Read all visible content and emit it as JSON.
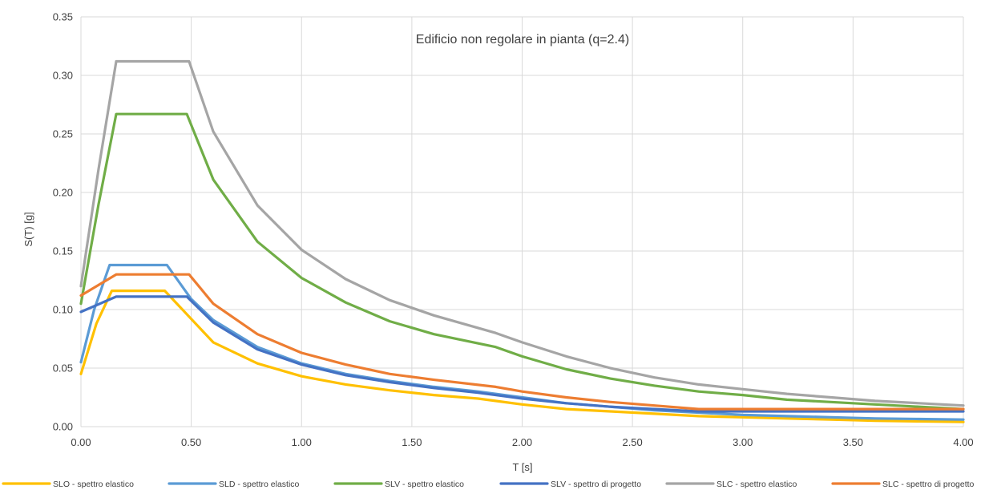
{
  "chart_data": {
    "type": "line",
    "title": "Edificio non regolare in pianta (q=2.4)",
    "xlabel": "T [s]",
    "ylabel": "S(T) [g]",
    "xlim": [
      0,
      4
    ],
    "ylim": [
      0,
      0.35
    ],
    "xticks": [
      "0.00",
      "0.50",
      "1.00",
      "1.50",
      "2.00",
      "2.50",
      "3.00",
      "3.50",
      "4.00"
    ],
    "yticks": [
      "0.00",
      "0.05",
      "0.10",
      "0.15",
      "0.20",
      "0.25",
      "0.30",
      "0.35"
    ],
    "grid": true,
    "legend_position": "bottom",
    "series": [
      {
        "name": "SLO - spettro elastico",
        "color": "#ffc000",
        "x": [
          0,
          0.07,
          0.14,
          0.38,
          0.5,
          0.6,
          0.8,
          1.0,
          1.2,
          1.4,
          1.6,
          1.8,
          2.0,
          2.2,
          2.4,
          2.6,
          2.8,
          3.0,
          3.2,
          3.4,
          3.6,
          3.8,
          4.0
        ],
        "y": [
          0.045,
          0.088,
          0.116,
          0.116,
          0.092,
          0.072,
          0.054,
          0.043,
          0.036,
          0.031,
          0.027,
          0.024,
          0.019,
          0.015,
          0.013,
          0.011,
          0.009,
          0.008,
          0.007,
          0.006,
          0.005,
          0.0045,
          0.004
        ]
      },
      {
        "name": "SLD - spettro elastico",
        "color": "#5b9bd5",
        "x": [
          0,
          0.06,
          0.13,
          0.39,
          0.5,
          0.6,
          0.8,
          1.0,
          1.2,
          1.4,
          1.6,
          1.8,
          2.0,
          2.2,
          2.4,
          2.6,
          2.8,
          3.0,
          3.2,
          3.4,
          3.6,
          3.8,
          4.0
        ],
        "y": [
          0.055,
          0.1,
          0.138,
          0.138,
          0.109,
          0.091,
          0.068,
          0.054,
          0.045,
          0.039,
          0.034,
          0.03,
          0.025,
          0.02,
          0.017,
          0.014,
          0.012,
          0.01,
          0.009,
          0.008,
          0.007,
          0.0065,
          0.006
        ]
      },
      {
        "name": "SLV - spettro elastico",
        "color": "#70ad47",
        "x": [
          0,
          0.08,
          0.16,
          0.48,
          0.6,
          0.8,
          1.0,
          1.2,
          1.4,
          1.6,
          1.88,
          2.0,
          2.2,
          2.4,
          2.6,
          2.8,
          3.0,
          3.2,
          3.4,
          3.6,
          3.8,
          4.0
        ],
        "y": [
          0.105,
          0.19,
          0.267,
          0.267,
          0.211,
          0.158,
          0.127,
          0.106,
          0.09,
          0.079,
          0.068,
          0.06,
          0.049,
          0.041,
          0.035,
          0.03,
          0.027,
          0.023,
          0.021,
          0.019,
          0.017,
          0.015
        ]
      },
      {
        "name": "SLV - spettro di progetto",
        "color": "#4472c4",
        "x": [
          0,
          0.16,
          0.48,
          0.6,
          0.8,
          1.0,
          1.2,
          1.4,
          1.6,
          1.8,
          2.0,
          2.2,
          2.4,
          2.6,
          2.8,
          3.0,
          3.2,
          3.4,
          3.6,
          3.8,
          4.0
        ],
        "y": [
          0.098,
          0.111,
          0.111,
          0.089,
          0.066,
          0.053,
          0.044,
          0.038,
          0.033,
          0.029,
          0.024,
          0.02,
          0.017,
          0.015,
          0.013,
          0.013,
          0.013,
          0.013,
          0.013,
          0.013,
          0.013
        ]
      },
      {
        "name": "SLC - spettro elastico",
        "color": "#a5a5a5",
        "x": [
          0,
          0.08,
          0.16,
          0.49,
          0.6,
          0.8,
          1.0,
          1.2,
          1.4,
          1.6,
          1.88,
          2.0,
          2.2,
          2.4,
          2.6,
          2.8,
          3.0,
          3.2,
          3.4,
          3.6,
          3.8,
          4.0
        ],
        "y": [
          0.12,
          0.22,
          0.312,
          0.312,
          0.252,
          0.189,
          0.151,
          0.126,
          0.108,
          0.095,
          0.08,
          0.072,
          0.06,
          0.05,
          0.042,
          0.036,
          0.032,
          0.028,
          0.025,
          0.022,
          0.02,
          0.018
        ]
      },
      {
        "name": "SLC - spettro di progetto",
        "color": "#ed7d31",
        "x": [
          0,
          0.16,
          0.49,
          0.6,
          0.8,
          1.0,
          1.2,
          1.4,
          1.6,
          1.88,
          2.0,
          2.2,
          2.4,
          2.6,
          2.8,
          3.0,
          3.2,
          3.4,
          3.6,
          3.8,
          4.0
        ],
        "y": [
          0.112,
          0.13,
          0.13,
          0.105,
          0.079,
          0.063,
          0.053,
          0.045,
          0.04,
          0.034,
          0.03,
          0.025,
          0.021,
          0.018,
          0.015,
          0.015,
          0.015,
          0.015,
          0.015,
          0.015,
          0.015
        ]
      }
    ]
  }
}
